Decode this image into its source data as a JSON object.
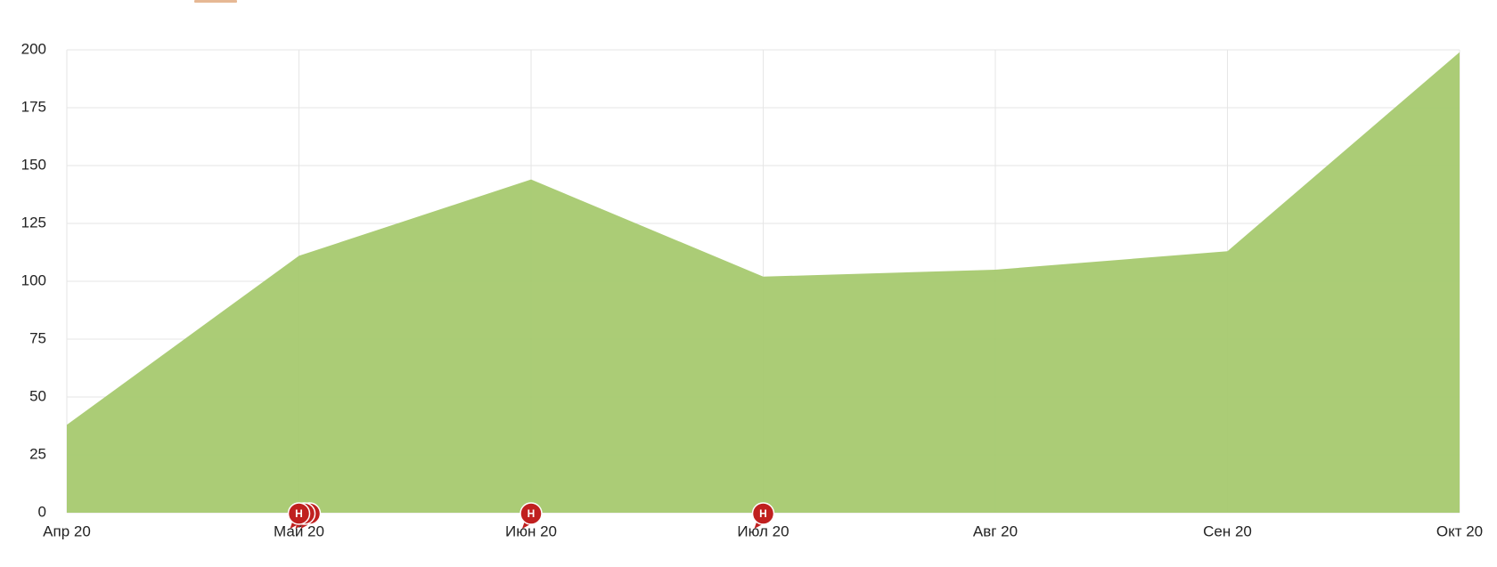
{
  "chart_data": {
    "type": "area",
    "categories": [
      "Апр 20",
      "Май 20",
      "Июн 20",
      "Июл 20",
      "Авг 20",
      "Сен 20",
      "Окт 20"
    ],
    "values": [
      38,
      111,
      144,
      102,
      105,
      113,
      199
    ],
    "color": "#a6c96f",
    "ylim": [
      0,
      200
    ],
    "yticks": [
      0,
      25,
      50,
      75,
      100,
      125,
      150,
      175,
      200
    ],
    "grid": true,
    "annotations": [
      {
        "x": "Май 20",
        "label": "Н"
      },
      {
        "x": "Май 20",
        "label": "Н"
      },
      {
        "x": "Май 20",
        "label": "Н"
      },
      {
        "x": "Июн 20",
        "label": "Н"
      },
      {
        "x": "Июл 20",
        "label": "Н"
      }
    ]
  }
}
